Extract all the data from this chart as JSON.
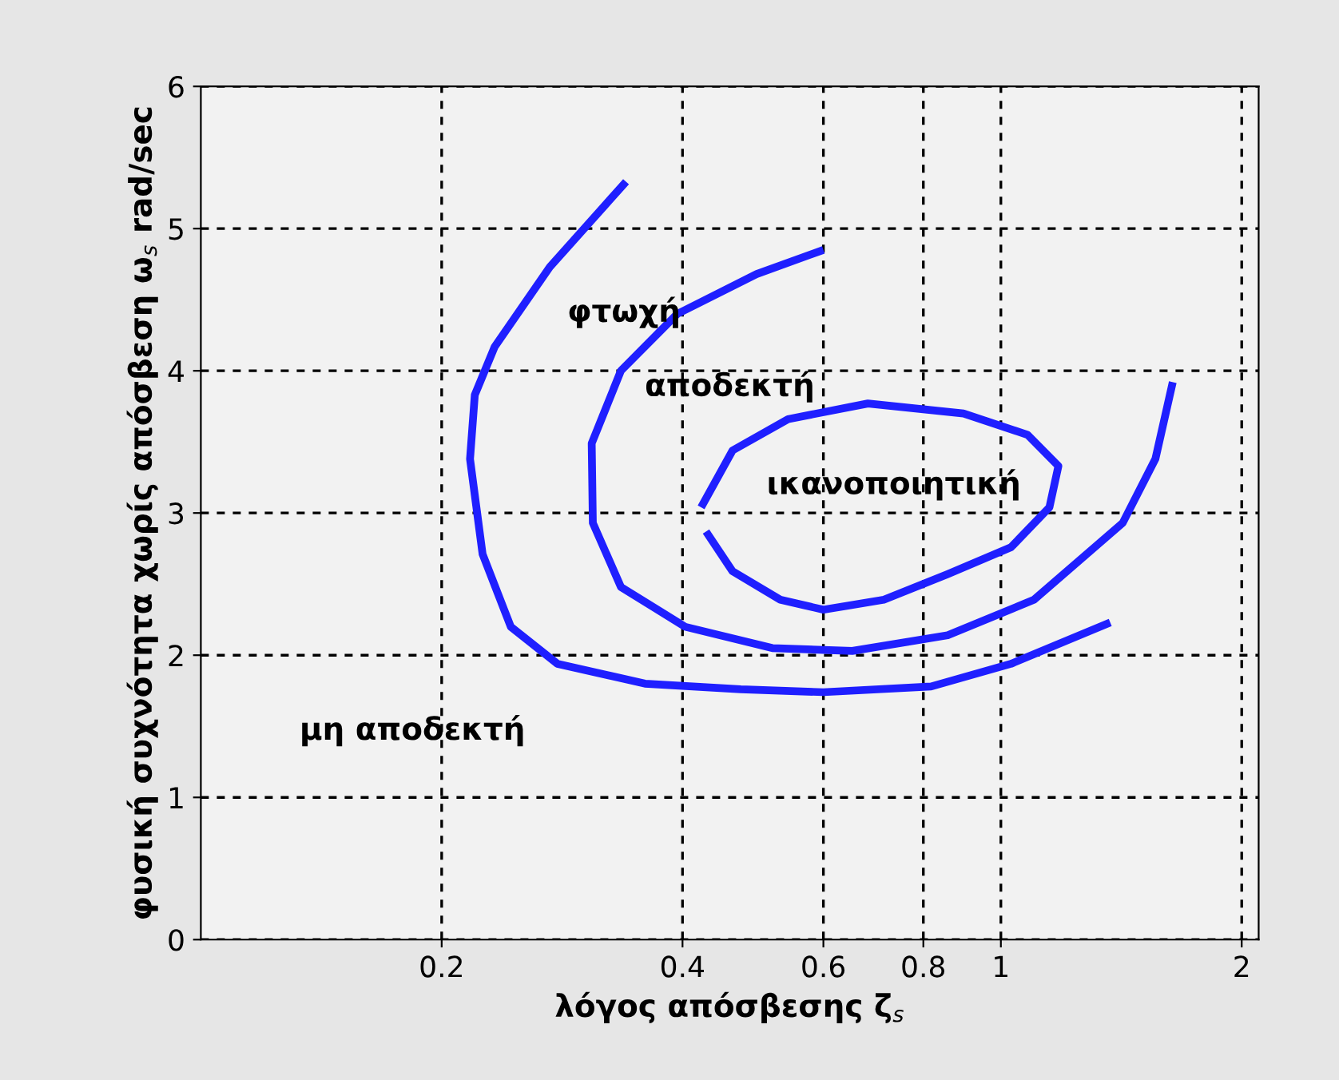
{
  "chart_data": {
    "type": "line",
    "xlabel": "λόγος απόσβεσης ζ$_{s}$",
    "ylabel": "φυσική συχνότητα χωρίς απόσβεση ω$_{s}$ rad/sec",
    "log": "x",
    "grid": true,
    "line_style": "solid",
    "marker": "none",
    "xlim": [
      0.1,
      2.1
    ],
    "ylim": [
      0,
      6
    ],
    "xticks": [
      0.2,
      0.4,
      0.6,
      0.8,
      1,
      2
    ],
    "yticks": [
      0,
      1,
      2,
      3,
      4,
      5,
      6
    ],
    "series": [
      {
        "color": "#1f1fff",
        "x": [
          0.34,
          0.273,
          0.233,
          0.22,
          0.217,
          0.225,
          0.244,
          0.279,
          0.359,
          0.473,
          0.6,
          0.818,
          1.03,
          1.37
        ],
        "values": [
          5.33,
          4.73,
          4.17,
          3.83,
          3.38,
          2.71,
          2.2,
          1.94,
          1.8,
          1.76,
          1.74,
          1.78,
          1.94,
          2.23
        ]
      },
      {
        "color": "#1f1fff",
        "x": [
          0.6,
          0.495,
          0.394,
          0.335,
          0.308,
          0.309,
          0.335,
          0.403,
          0.518,
          0.652,
          0.858,
          1.1,
          1.42,
          1.56,
          1.64
        ],
        "values": [
          4.85,
          4.68,
          4.4,
          4.0,
          3.49,
          2.93,
          2.48,
          2.2,
          2.05,
          2.03,
          2.14,
          2.39,
          2.93,
          3.38,
          3.92
        ]
      },
      {
        "color": "#1f1fff",
        "x": [
          0.422,
          0.462,
          0.542,
          0.682,
          0.898,
          1.08,
          1.18,
          1.15,
          1.03,
          0.858,
          0.714,
          0.6,
          0.53,
          0.462,
          0.428
        ],
        "values": [
          3.04,
          3.44,
          3.66,
          3.77,
          3.7,
          3.55,
          3.33,
          3.04,
          2.76,
          2.57,
          2.39,
          2.32,
          2.39,
          2.59,
          2.87
        ]
      }
    ],
    "annotations": [
      "φτωχή",
      "αποδεκτή",
      "ικανοποιητική",
      "μη αποδεκτή"
    ]
  }
}
